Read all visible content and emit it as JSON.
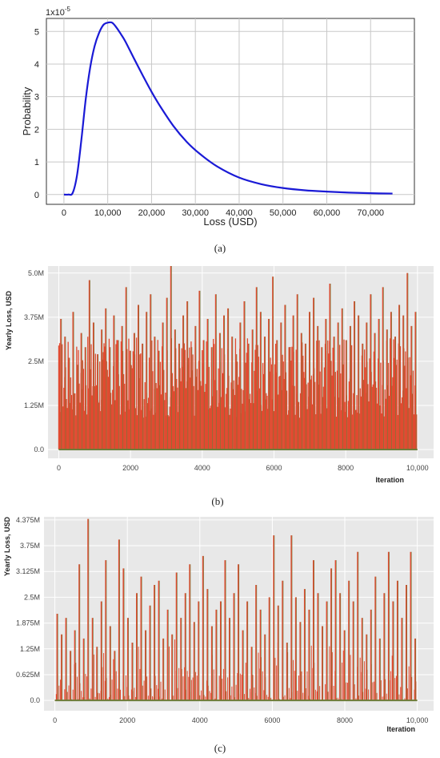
{
  "chart_data": [
    {
      "type": "line",
      "caption": "(a)",
      "xlabel": "Loss (USD)",
      "ylabel": "Probability",
      "y_multiplier_label": "1x10",
      "y_multiplier_exponent": "-5",
      "xlim": [
        -4000,
        80000
      ],
      "ylim": [
        -0.3,
        5.4
      ],
      "x_ticks": [
        0,
        10000,
        20000,
        30000,
        40000,
        50000,
        60000,
        70000
      ],
      "x_tick_labels": [
        "0",
        "10,000",
        "20,000",
        "30,000",
        "40,000",
        "50,000",
        "60,000",
        "70,000"
      ],
      "y_ticks": [
        0,
        1,
        2,
        3,
        4,
        5
      ],
      "y_tick_labels": [
        "0",
        "1",
        "2",
        "3",
        "4",
        "5"
      ],
      "grid": true,
      "series": [
        {
          "color": "#1a1ad6",
          "x": [
            0,
            1000,
            2000,
            3000,
            4000,
            5000,
            6000,
            7000,
            8000,
            9000,
            10000,
            11000,
            12000,
            13000,
            14000,
            16000,
            18000,
            20000,
            22000,
            25000,
            28000,
            31000,
            35000,
            40000,
            45000,
            50000,
            55000,
            60000,
            65000,
            70000,
            75000
          ],
          "y": [
            0,
            0,
            0.05,
            0.6,
            1.7,
            2.95,
            3.9,
            4.55,
            4.95,
            5.2,
            5.27,
            5.27,
            5.12,
            4.92,
            4.7,
            4.17,
            3.65,
            3.15,
            2.7,
            2.1,
            1.62,
            1.25,
            0.86,
            0.52,
            0.32,
            0.2,
            0.13,
            0.09,
            0.06,
            0.04,
            0.03
          ]
        }
      ]
    },
    {
      "type": "bar",
      "caption": "(b)",
      "xlabel": "Iteration",
      "ylabel": "Yearly Loss, USD",
      "xlim": [
        -300,
        10450
      ],
      "ylim": [
        -0.25,
        5.2
      ],
      "x_ticks": [
        0,
        2000,
        4000,
        6000,
        8000,
        10000
      ],
      "x_tick_labels": [
        "0",
        "2000",
        "4000",
        "6000",
        "8000",
        "10,000"
      ],
      "y_ticks": [
        0,
        1.25,
        2.5,
        3.75,
        5.0
      ],
      "y_tick_labels": [
        "0.0",
        "1.25M",
        "2.5M",
        "3.75M",
        "5.0M"
      ],
      "units": "M USD",
      "grid": true,
      "iterations": 10000,
      "fill_color": "#e04a30",
      "edge_color": "#6e7d3a",
      "values": [
        3.7,
        3.2,
        2.6,
        3.9,
        2.4,
        3.3,
        2.9,
        4.8,
        3.6,
        2.7,
        3.4,
        4.0,
        2.9,
        3.8,
        3.1,
        3.5,
        4.6,
        2.8,
        3.3,
        4.1,
        3.0,
        3.9,
        4.4,
        3.2,
        2.8,
        3.6,
        4.3,
        5.2,
        3.4,
        3.0,
        3.8,
        4.2,
        2.9,
        3.5,
        4.5,
        3.1,
        3.7,
        2.9,
        4.4,
        3.3,
        3.8,
        4.0,
        3.2,
        2.7,
        3.6,
        4.2,
        3.0,
        3.4,
        4.6,
        3.9,
        3.2,
        3.7,
        4.9,
        3.1,
        3.6,
        4.1,
        2.9,
        3.8,
        4.4,
        3.3,
        3.0,
        3.9,
        4.3,
        3.5,
        2.9,
        3.7,
        4.7,
        3.2,
        3.6,
        4.0,
        3.1,
        3.5,
        4.2,
        3.8,
        3.0,
        3.6,
        4.4,
        3.3,
        3.7,
        4.6,
        3.4,
        3.9,
        3.2,
        4.1,
        3.8,
        5.0,
        3.5,
        3.9
      ]
    },
    {
      "type": "bar",
      "caption": "(c)",
      "xlabel": "Iteration",
      "ylabel": "Yearly Loss, USD",
      "xlim": [
        -300,
        10450
      ],
      "ylim": [
        -0.25,
        4.45
      ],
      "x_ticks": [
        0,
        2000,
        4000,
        6000,
        8000,
        10000
      ],
      "x_tick_labels": [
        "0",
        "2000",
        "4000",
        "6000",
        "8000",
        "10,000"
      ],
      "y_ticks": [
        0,
        0.625,
        1.25,
        1.875,
        2.5,
        3.125,
        3.75,
        4.375
      ],
      "y_tick_labels": [
        "0.0",
        "0.625M",
        "1.25M",
        "1.875M",
        "2.5M",
        "3.125M",
        "3.75M",
        "4.375M"
      ],
      "units": "M USD",
      "grid": true,
      "iterations": 10000,
      "fill_color": "#e04a30",
      "edge_color": "#6e7d3a",
      "values": [
        2.1,
        1.6,
        2.0,
        1.2,
        1.7,
        3.3,
        1.5,
        4.4,
        2.0,
        1.3,
        2.4,
        3.4,
        1.8,
        1.2,
        3.9,
        3.2,
        2.0,
        1.4,
        2.6,
        3.0,
        1.7,
        2.3,
        2.8,
        2.9,
        1.5,
        2.2,
        1.6,
        3.1,
        2.0,
        2.6,
        3.3,
        1.9,
        2.4,
        3.5,
        2.7,
        1.8,
        2.2,
        2.4,
        3.4,
        2.0,
        2.6,
        3.3,
        1.7,
        2.4,
        1.3,
        2.8,
        2.2,
        1.6,
        2.5,
        4.0,
        2.3,
        2.9,
        1.4,
        4.0,
        2.5,
        1.9,
        2.7,
        2.2,
        3.4,
        2.6,
        1.8,
        2.4,
        3.2,
        3.4,
        2.6,
        1.7,
        2.9,
        2.4,
        3.6,
        2.0,
        1.6,
        2.2,
        3.0,
        1.5,
        2.6,
        3.6,
        2.4,
        2.9,
        2.0,
        2.8,
        3.6,
        1.5
      ]
    }
  ]
}
